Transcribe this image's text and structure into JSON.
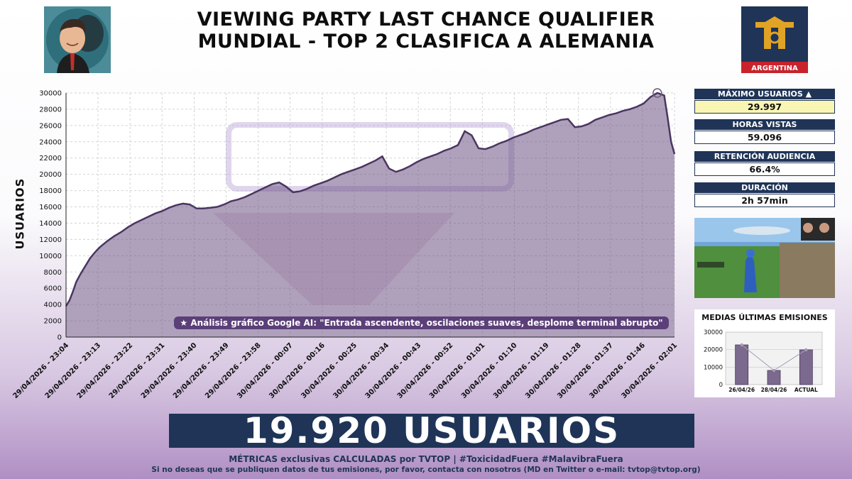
{
  "header": {
    "title_line1": "VIEWING PARTY LAST CHANCE QUALIFIER",
    "title_line2": "MUNDIAL - TOP 2 CLASIFICA A ALEMANIA",
    "logo_caption": "ARGENTINA"
  },
  "colors": {
    "navy": "#1f3457",
    "area_fill": "#a391ad",
    "line": "#4a3560",
    "highlight": "#f8f6b2"
  },
  "chart_data": {
    "type": "area",
    "ylabel": "USUARIOS",
    "ylim": [
      0,
      30000
    ],
    "yticks": [
      0,
      2000,
      4000,
      6000,
      8000,
      10000,
      12000,
      14000,
      16000,
      18000,
      20000,
      22000,
      24000,
      26000,
      28000,
      30000
    ],
    "grid": true,
    "xtick_labels": [
      "29/04/2026 - 23:04",
      "29/04/2026 - 23:13",
      "29/04/2026 - 23:22",
      "29/04/2026 - 23:31",
      "29/04/2026 - 23:40",
      "29/04/2026 - 23:49",
      "29/04/2026 - 23:58",
      "30/04/2026 - 00:07",
      "30/04/2026 - 00:16",
      "30/04/2026 - 00:25",
      "30/04/2026 - 00:34",
      "30/04/2026 - 00:43",
      "30/04/2026 - 00:52",
      "30/04/2026 - 01:01",
      "30/04/2026 - 01:10",
      "30/04/2026 - 01:19",
      "30/04/2026 - 01:28",
      "30/04/2026 - 01:37",
      "30/04/2026 - 01:46",
      "30/04/2026 - 02:01"
    ],
    "x_minutes_from_start": [
      0,
      1,
      2,
      3,
      4,
      5,
      6,
      7,
      8,
      9,
      10,
      12,
      14,
      16,
      18,
      20,
      22,
      24,
      26,
      28,
      30,
      32,
      34,
      36,
      38,
      40,
      42,
      44,
      46,
      48,
      50,
      52,
      54,
      56,
      58,
      60,
      62,
      64,
      66,
      68,
      70,
      72,
      74,
      76,
      78,
      80,
      82,
      84,
      86,
      88,
      90,
      92,
      94,
      96,
      98,
      100,
      102,
      104,
      106,
      108,
      110,
      112,
      114,
      116,
      118,
      120,
      122,
      124,
      126,
      128,
      130,
      132,
      134,
      136,
      138,
      140,
      142,
      144,
      146,
      148,
      150,
      152,
      154,
      156,
      158,
      160,
      162,
      164,
      166,
      168,
      170,
      172,
      174,
      175,
      176,
      177
    ],
    "values": [
      3800,
      4500,
      5600,
      6800,
      7600,
      8300,
      9000,
      9700,
      10200,
      10700,
      11100,
      11800,
      12400,
      12900,
      13500,
      14000,
      14400,
      14800,
      15200,
      15500,
      15900,
      16200,
      16400,
      16300,
      15800,
      15800,
      15900,
      16000,
      16300,
      16700,
      16900,
      17200,
      17600,
      18000,
      18400,
      18800,
      19000,
      18500,
      17800,
      17900,
      18200,
      18600,
      18900,
      19200,
      19600,
      20000,
      20300,
      20600,
      20900,
      21300,
      21700,
      22200,
      20700,
      20300,
      20600,
      21000,
      21500,
      21900,
      22200,
      22500,
      22900,
      23200,
      23600,
      25300,
      24800,
      23200,
      23100,
      23400,
      23800,
      24100,
      24500,
      24800,
      25100,
      25500,
      25800,
      26100,
      26400,
      26700,
      26800,
      25800,
      25900,
      26200,
      26700,
      27000,
      27300,
      27500,
      27800,
      28000,
      28300,
      28700,
      29500,
      29997,
      29700,
      27000,
      24000,
      22500
    ],
    "peak_value": 29997,
    "annotation": "★ Análisis gráfico Google AI: \"Entrada ascendente, oscilaciones suaves, desplome terminal abrupto\""
  },
  "stats": [
    {
      "label": "MÁXIMO USUARIOS ▲",
      "value": "29.997",
      "highlight": true
    },
    {
      "label": "HORAS VISTAS",
      "value": "59.096",
      "highlight": false
    },
    {
      "label": "RETENCIÓN AUDIENCIA",
      "value": "66.4%",
      "highlight": false
    },
    {
      "label": "DURACIÓN",
      "value": "2h 57min",
      "highlight": false
    }
  ],
  "averages": {
    "title": "MEDIAS ÚLTIMAS EMISIONES",
    "type": "bar",
    "categories": [
      "26/04/26",
      "28/04/26",
      "ACTUAL"
    ],
    "values": [
      22700,
      8100,
      19900
    ],
    "yticks": [
      0,
      10000,
      20000,
      30000
    ],
    "ylim": [
      0,
      30000
    ]
  },
  "banner": {
    "text": "19.920 USUARIOS"
  },
  "footer": {
    "line1": "MÉTRICAS exclusivas CALCULADAS por TVTOP | #ToxicidadFuera #MalavibraFuera",
    "line2": "Si no deseas que se publiquen datos de tus emisiones, por favor, contacta con nosotros (MD en Twitter o e-mail: tvtop@tvtop.org)"
  }
}
